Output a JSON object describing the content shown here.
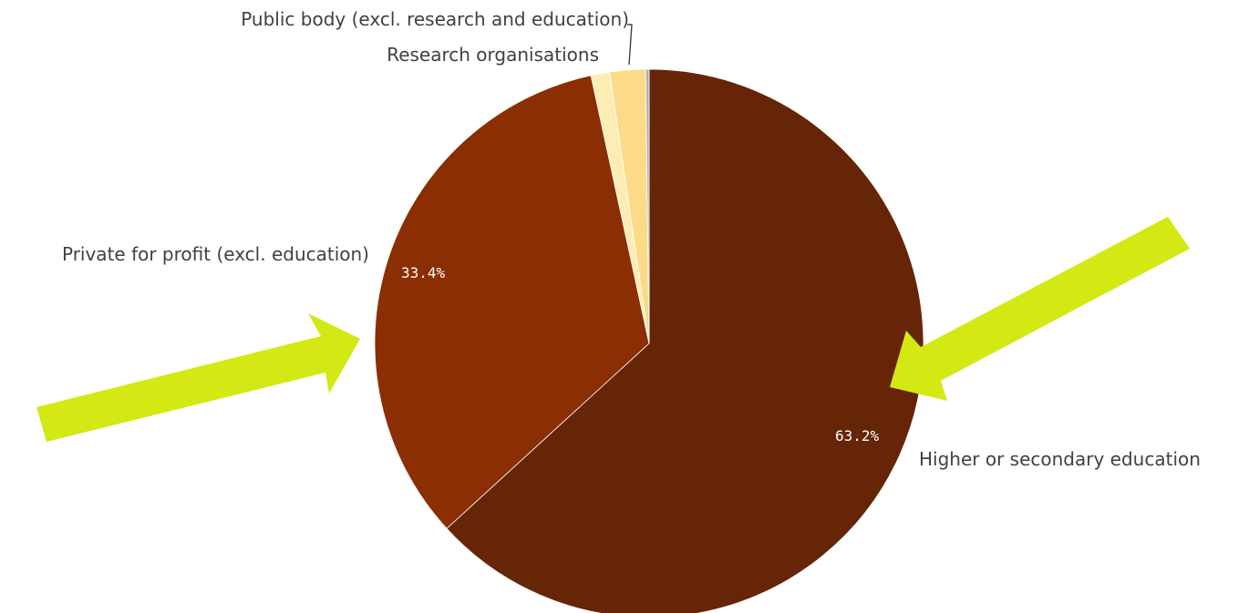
{
  "chart_data": {
    "type": "pie",
    "slices": [
      {
        "label": "Higher or secondary education",
        "value": 63.2,
        "value_label": "63.2%",
        "color": "#652506"
      },
      {
        "label": "Private for profit (excl. education)",
        "value": 33.4,
        "value_label": "33.4%",
        "color": "#8b2e03"
      },
      {
        "label": "",
        "value": 1.1,
        "value_label": "",
        "color": "#fdedb4"
      },
      {
        "label": "Research organisations",
        "value": 2.1,
        "value_label": "",
        "color": "#fcdb88"
      },
      {
        "label": "Public body (excl. research and education)",
        "value": 0.2,
        "value_label": "",
        "color": "#b0b0b0"
      }
    ],
    "start_angle": "12 o'clock",
    "direction": "clockwise",
    "legend": "none",
    "annotations": [
      {
        "type": "arrow",
        "points_to": "Private for profit (excl. education)",
        "color": "#d4e814"
      },
      {
        "type": "arrow",
        "points_to": "Higher or secondary education",
        "color": "#d4e814"
      }
    ]
  }
}
